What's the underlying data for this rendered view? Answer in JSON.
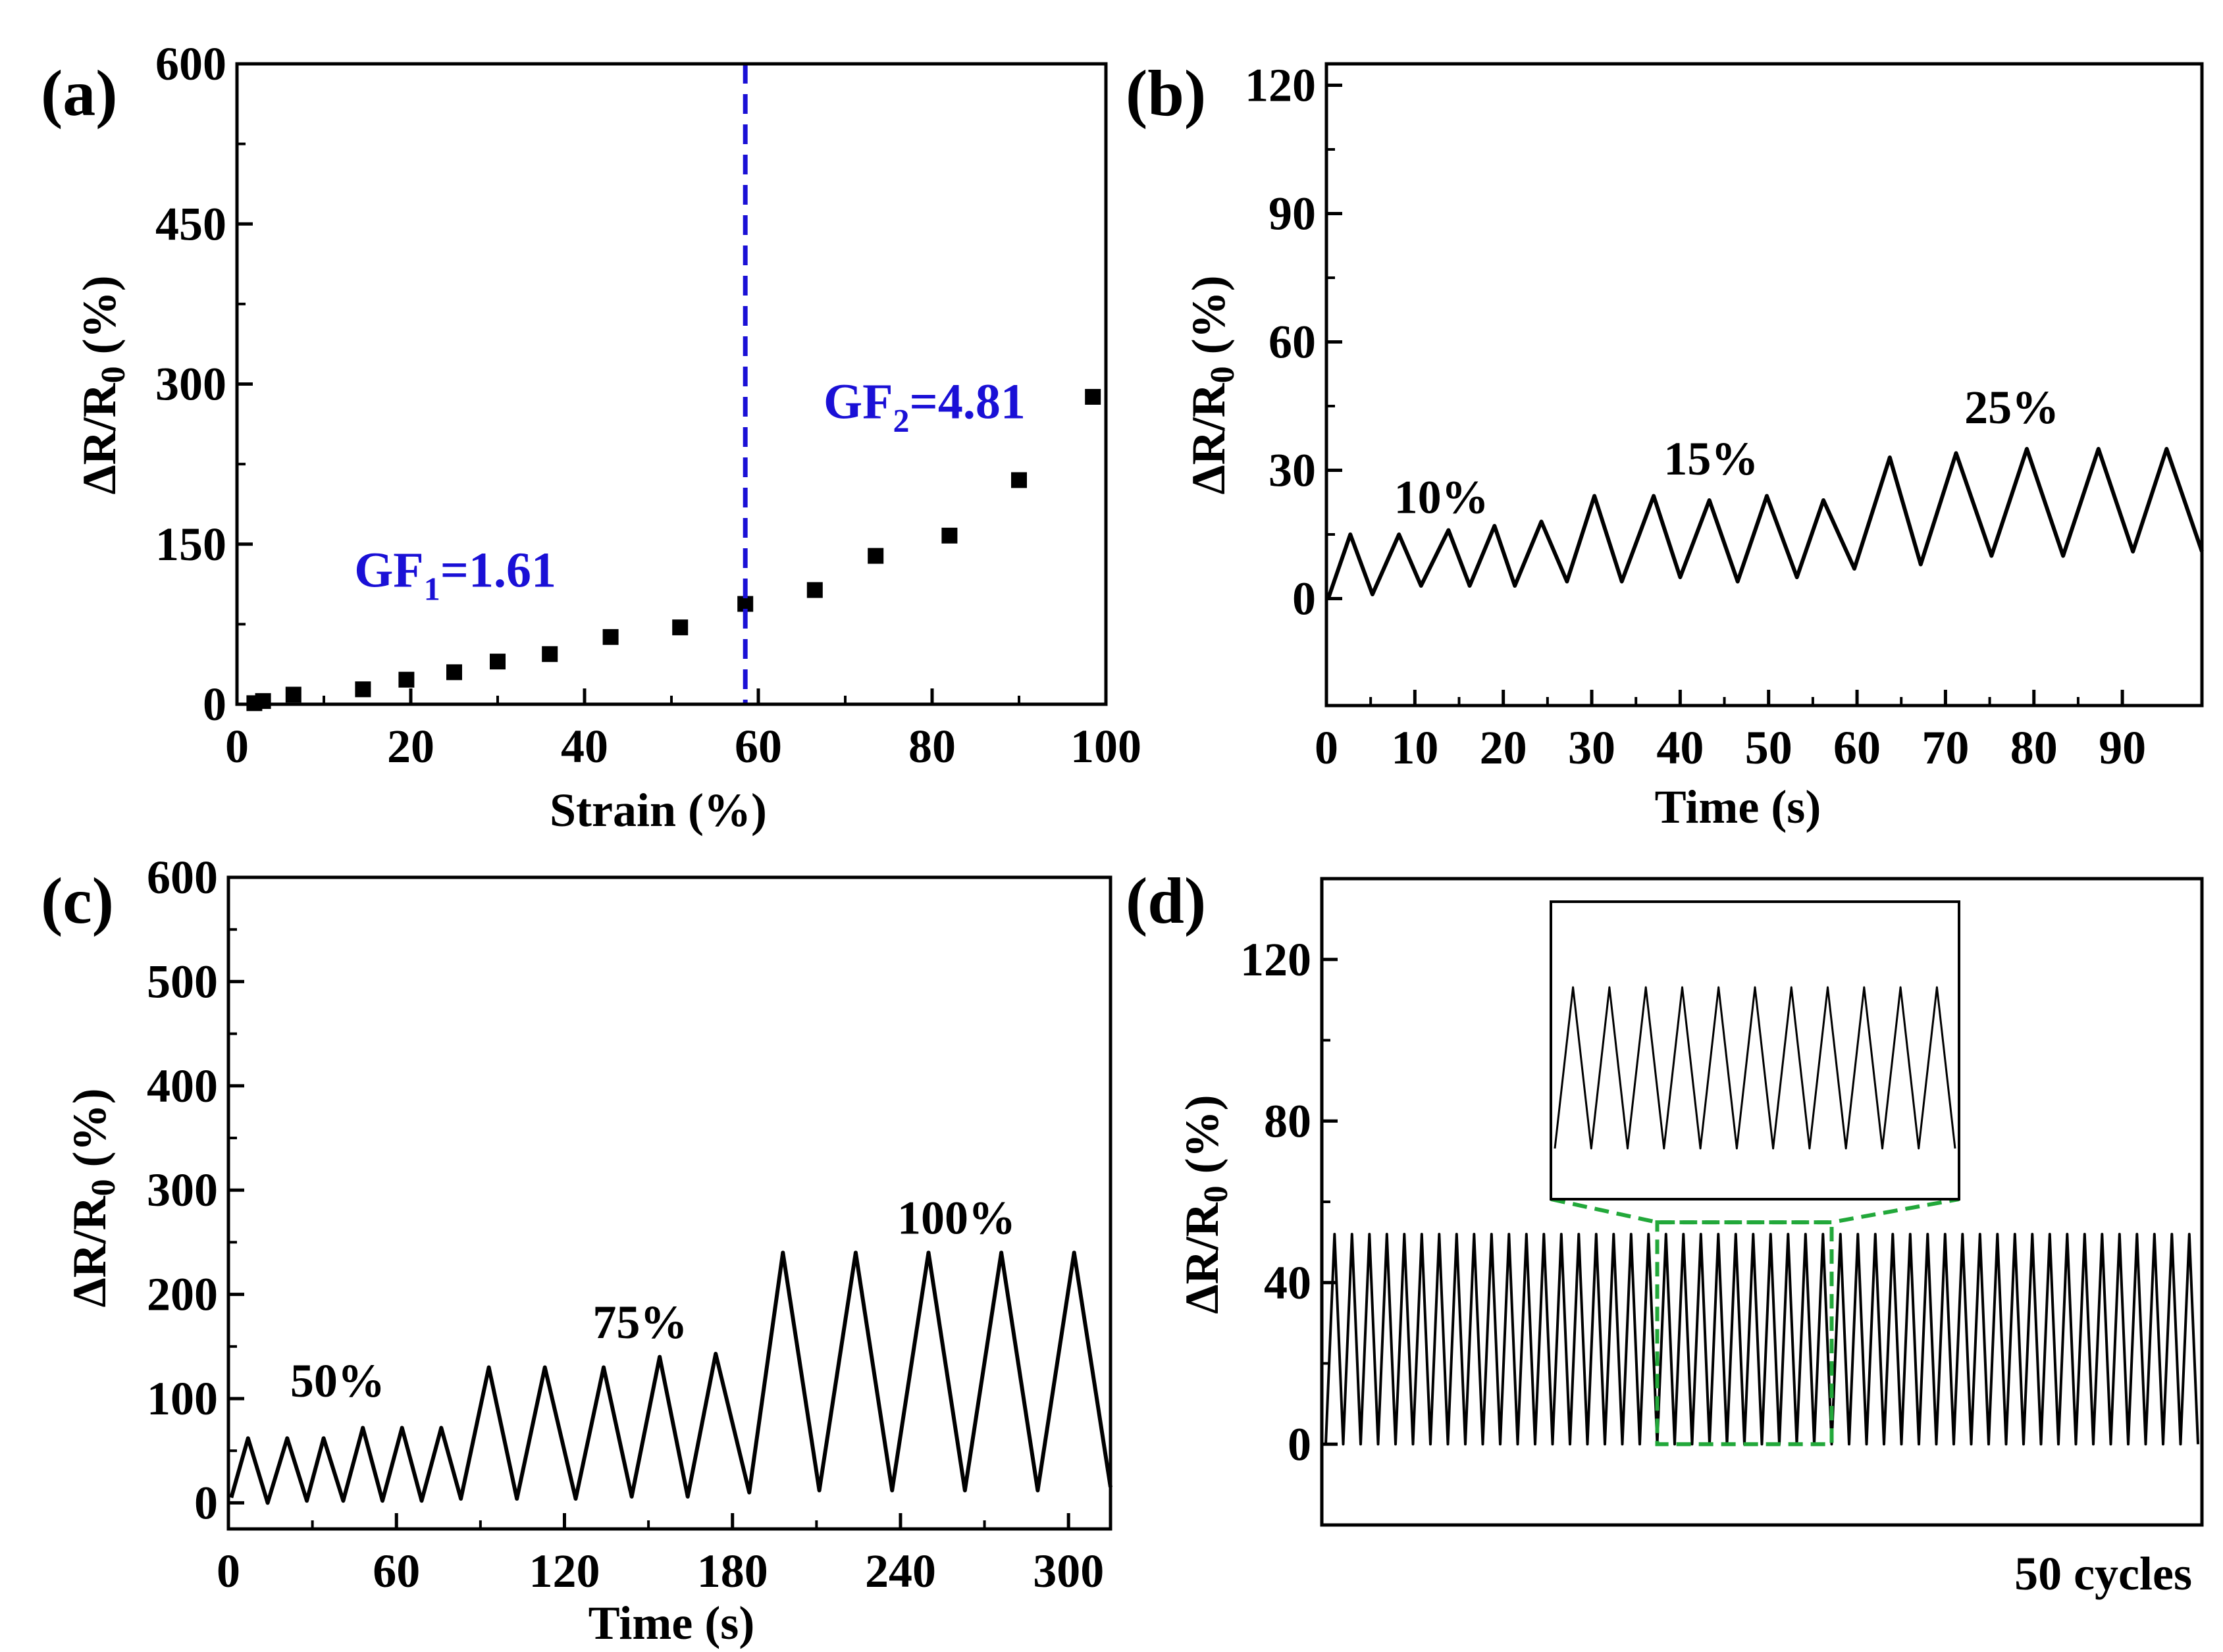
{
  "figure": {
    "caption_note": "50 cycles"
  },
  "chart_data": [
    {
      "id": "a",
      "panel_label": "(a)",
      "type": "scatter",
      "xlabel": "Strain (%)",
      "ylabel": "ΔR/R",
      "ylabel_sub": "0",
      "ylabel_tail": " (%)",
      "xlim": [
        0,
        100
      ],
      "ylim": [
        0,
        600
      ],
      "xticks": [
        0,
        20,
        40,
        60,
        80,
        100
      ],
      "yticks": [
        0,
        150,
        300,
        450,
        600
      ],
      "divider_x": 58.5,
      "divider_color": "#1a10d6",
      "x": [
        2,
        3,
        6.5,
        14.5,
        19.5,
        25,
        30,
        36,
        43,
        51,
        58.5,
        66.5,
        73.5,
        82,
        90,
        98.5
      ],
      "y": [
        1,
        3,
        9,
        14,
        23,
        30,
        40,
        47,
        63,
        72,
        94,
        107,
        139,
        158,
        210,
        288
      ],
      "annotations": [
        {
          "pre": "GF",
          "sub": "1",
          "post": "=1.61",
          "at_x": 13.5,
          "at_y": 110
        },
        {
          "pre": "GF",
          "sub": "2",
          "post": "=4.81",
          "at_x": 67.5,
          "at_y": 268
        }
      ]
    },
    {
      "id": "b",
      "panel_label": "(b)",
      "type": "line",
      "xlabel": "Time (s)",
      "ylabel": "ΔR/R",
      "ylabel_sub": "0",
      "ylabel_tail": " (%)",
      "xlim": [
        0,
        99
      ],
      "ylim": [
        -25,
        125
      ],
      "xticks": [
        0,
        10,
        20,
        30,
        40,
        50,
        60,
        70,
        80,
        90
      ],
      "yticks": [
        0,
        30,
        60,
        90,
        120
      ],
      "cycles": [
        {
          "min": 0,
          "max": 15,
          "peak_t": 2.7,
          "trough_t": 0.2
        },
        {
          "min": 1,
          "max": 15,
          "peak_t": 8.2,
          "trough_t": 5.2
        },
        {
          "min": 3,
          "max": 16,
          "peak_t": 13.8,
          "trough_t": 10.7
        },
        {
          "min": 3,
          "max": 17,
          "peak_t": 19,
          "trough_t": 16.2
        },
        {
          "min": 3,
          "max": 18,
          "peak_t": 24.3,
          "trough_t": 21.3
        },
        {
          "min": 4,
          "max": 24,
          "peak_t": 30.3,
          "trough_t": 27.2
        },
        {
          "min": 4,
          "max": 24,
          "peak_t": 37,
          "trough_t": 33.4
        },
        {
          "min": 5,
          "max": 23,
          "peak_t": 43.3,
          "trough_t": 40
        },
        {
          "min": 4,
          "max": 24,
          "peak_t": 49.8,
          "trough_t": 46.5
        },
        {
          "min": 5,
          "max": 23,
          "peak_t": 56.2,
          "trough_t": 53.2
        },
        {
          "min": 7,
          "max": 33,
          "peak_t": 63.7,
          "trough_t": 59.7
        },
        {
          "min": 8,
          "max": 34,
          "peak_t": 71.2,
          "trough_t": 67.2
        },
        {
          "min": 10,
          "max": 35,
          "peak_t": 79.2,
          "trough_t": 75.2
        },
        {
          "min": 10,
          "max": 35,
          "peak_t": 87.3,
          "trough_t": 83.3
        },
        {
          "min": 11,
          "max": 35,
          "peak_t": 95,
          "trough_t": 91.2
        }
      ],
      "end": {
        "t": 99,
        "v": 11
      },
      "annotations": [
        {
          "text": "10%",
          "at_x": 13,
          "at_y": 20
        },
        {
          "text": "15%",
          "at_x": 43.5,
          "at_y": 29
        },
        {
          "text": "25%",
          "at_x": 77.5,
          "at_y": 41
        }
      ]
    },
    {
      "id": "c",
      "panel_label": "(c)",
      "type": "line",
      "xlabel": "Time (s)",
      "ylabel": "ΔR/R",
      "ylabel_sub": "0",
      "ylabel_tail": " (%)",
      "xlim": [
        0,
        315
      ],
      "ylim": [
        -25,
        600
      ],
      "xticks": [
        0,
        60,
        120,
        180,
        240,
        300
      ],
      "yticks": [
        0,
        100,
        200,
        300,
        400,
        500,
        600
      ],
      "cycles": [
        {
          "min": 5,
          "max": 62,
          "peak_t": 7,
          "trough_t": 1
        },
        {
          "min": 0,
          "max": 62,
          "peak_t": 21,
          "trough_t": 14
        },
        {
          "min": 2,
          "max": 62,
          "peak_t": 34,
          "trough_t": 28
        },
        {
          "min": 2,
          "max": 72,
          "peak_t": 48,
          "trough_t": 41
        },
        {
          "min": 2,
          "max": 72,
          "peak_t": 62,
          "trough_t": 55
        },
        {
          "min": 2,
          "max": 72,
          "peak_t": 76,
          "trough_t": 69
        },
        {
          "min": 4,
          "max": 130,
          "peak_t": 93,
          "trough_t": 83
        },
        {
          "min": 4,
          "max": 130,
          "peak_t": 113,
          "trough_t": 103
        },
        {
          "min": 4,
          "max": 130,
          "peak_t": 134,
          "trough_t": 124
        },
        {
          "min": 6,
          "max": 140,
          "peak_t": 154,
          "trough_t": 144
        },
        {
          "min": 6,
          "max": 143,
          "peak_t": 174,
          "trough_t": 164
        },
        {
          "min": 10,
          "max": 240,
          "peak_t": 198,
          "trough_t": 186
        },
        {
          "min": 12,
          "max": 240,
          "peak_t": 224,
          "trough_t": 211
        },
        {
          "min": 12,
          "max": 240,
          "peak_t": 250,
          "trough_t": 237
        },
        {
          "min": 12,
          "max": 240,
          "peak_t": 276,
          "trough_t": 263
        },
        {
          "min": 12,
          "max": 240,
          "peak_t": 302,
          "trough_t": 289
        }
      ],
      "end": {
        "t": 315,
        "v": 15
      },
      "annotations": [
        {
          "text": "50%",
          "at_x": 39,
          "at_y": 102
        },
        {
          "text": "75%",
          "at_x": 147,
          "at_y": 158
        },
        {
          "text": "100%",
          "at_x": 260,
          "at_y": 258
        }
      ]
    },
    {
      "id": "d",
      "panel_label": "(d)",
      "type": "line",
      "xlabel": "",
      "ylabel": "ΔR/R",
      "ylabel_sub": "0",
      "ylabel_tail": " (%)",
      "ylim": [
        -20,
        140
      ],
      "yticks": [
        0,
        40,
        80,
        120
      ],
      "cycle_count": 50,
      "min": 0,
      "max": 52,
      "highlight_cycles": [
        19,
        29
      ],
      "inset_cycles": 11,
      "highlight_color": "#22a83a"
    }
  ]
}
